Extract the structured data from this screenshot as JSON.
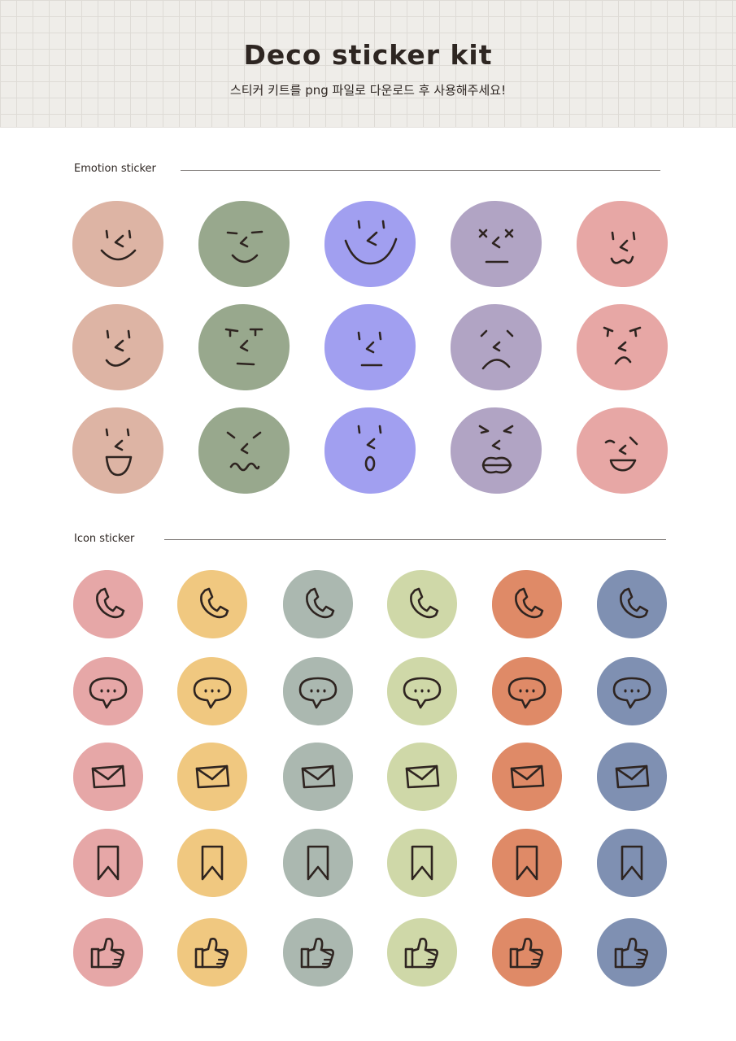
{
  "header": {
    "title": "Deco sticker kit",
    "subtitle": "스티커 키트를 png 파일로 다운로드 후 사용해주세요!"
  },
  "sections": {
    "emotion": {
      "label": "Emotion sticker",
      "colors": [
        "#ddb4a4",
        "#98a88d",
        "#a19ff0",
        "#b1a4c4",
        "#e7a7a5"
      ],
      "faces": [
        [
          "smile",
          "content",
          "big-grin",
          "dizzy",
          "cat-mouth"
        ],
        [
          "smirk",
          "skeptical",
          "neutral",
          "sad",
          "upset"
        ],
        [
          "open-smile",
          "wavy-frown",
          "surprised",
          "angry",
          "pleased"
        ]
      ]
    },
    "icon": {
      "label": "Icon sticker",
      "colors": [
        "#e6a7a7",
        "#f0c880",
        "#abb8b0",
        "#cfd8a8",
        "#df8a67",
        "#7f90b2"
      ],
      "icons": [
        "phone-icon",
        "speech-bubble-icon",
        "envelope-icon",
        "bookmark-icon",
        "thumbs-up-icon"
      ]
    }
  }
}
